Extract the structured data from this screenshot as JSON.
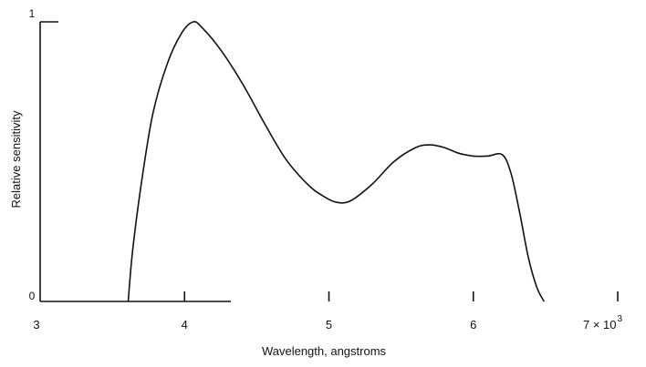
{
  "chart_data": {
    "type": "line",
    "title": "",
    "xlabel": "Wavelength, angstroms",
    "ylabel": "Relative sensitivity",
    "xlim": [
      3000,
      7000
    ],
    "ylim": [
      0,
      1
    ],
    "x_ticks": [
      {
        "value": 3000,
        "label": "3"
      },
      {
        "value": 4000,
        "label": "4"
      },
      {
        "value": 5000,
        "label": "5"
      },
      {
        "value": 6000,
        "label": "6"
      },
      {
        "value": 7000,
        "label": "7 × 10"
      }
    ],
    "x_tick_exponent": "3",
    "y_ticks": [
      {
        "value": 0,
        "label": "0"
      },
      {
        "value": 1,
        "label": "1"
      }
    ],
    "grid": false,
    "legend": "none",
    "series": [
      {
        "x": [
          3610,
          3640,
          3700,
          3780,
          3880,
          3980,
          4060,
          4120,
          4250,
          4400,
          4550,
          4700,
          4850,
          4950,
          5050,
          5150,
          5300,
          5450,
          5600,
          5700,
          5800,
          5900,
          6000,
          6100,
          6200,
          6260,
          6320,
          6380,
          6440,
          6490
        ],
        "y": [
          0.0,
          0.18,
          0.42,
          0.67,
          0.85,
          0.96,
          1.0,
          0.98,
          0.9,
          0.78,
          0.64,
          0.51,
          0.42,
          0.38,
          0.355,
          0.36,
          0.42,
          0.5,
          0.55,
          0.56,
          0.55,
          0.53,
          0.52,
          0.52,
          0.525,
          0.46,
          0.32,
          0.16,
          0.05,
          0.0
        ]
      }
    ]
  }
}
